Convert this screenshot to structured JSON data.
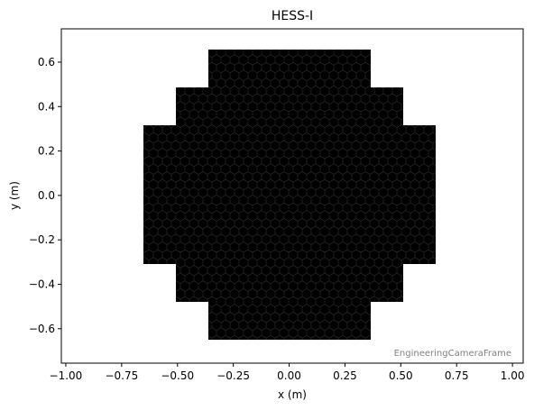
{
  "chart_data": {
    "type": "camera",
    "title": "HESS-I",
    "x_label": "x  (m)",
    "y_label": "y  (m)",
    "annotation": "EngineeringCameraFrame",
    "xlim": [
      -1.02,
      1.048
    ],
    "ylim": [
      -0.755,
      0.75
    ],
    "xticks": [
      {
        "value": -1,
        "label": "−1.00"
      },
      {
        "value": -0.75,
        "label": "−0.75"
      },
      {
        "value": -0.5,
        "label": "−0.50"
      },
      {
        "value": -0.25,
        "label": "−0.25"
      },
      {
        "value": 0,
        "label": "0.00"
      },
      {
        "value": 0.25,
        "label": "0.25"
      },
      {
        "value": 0.5,
        "label": "0.50"
      },
      {
        "value": 0.75,
        "label": "0.75"
      },
      {
        "value": 1,
        "label": "1.00"
      }
    ],
    "yticks": [
      {
        "value": -0.6,
        "label": "−0.6"
      },
      {
        "value": -0.4,
        "label": "−0.4"
      },
      {
        "value": -0.2,
        "label": "−0.2"
      },
      {
        "value": 0,
        "label": "0.0"
      },
      {
        "value": 0.2,
        "label": "0.2"
      },
      {
        "value": 0.4,
        "label": "0.4"
      },
      {
        "value": 0.6,
        "label": "0.6"
      }
    ],
    "color": "#000000"
  }
}
